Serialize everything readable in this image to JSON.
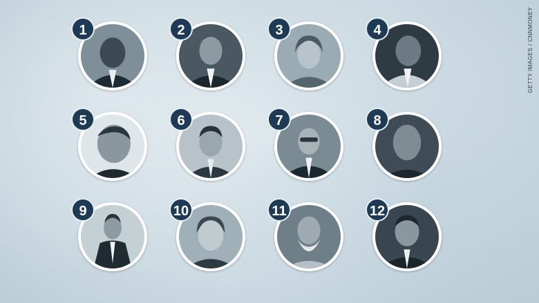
{
  "credit": "GETTY IMAGES / CNNMONEY",
  "leaders": [
    {
      "rank": "1"
    },
    {
      "rank": "2"
    },
    {
      "rank": "3"
    },
    {
      "rank": "4"
    },
    {
      "rank": "5"
    },
    {
      "rank": "6"
    },
    {
      "rank": "7"
    },
    {
      "rank": "8"
    },
    {
      "rank": "9"
    },
    {
      "rank": "10"
    },
    {
      "rank": "11"
    },
    {
      "rank": "12"
    }
  ],
  "colors": {
    "badge": "#1e3a55",
    "ring": "#ffffff",
    "background": "#d4e1e8"
  }
}
